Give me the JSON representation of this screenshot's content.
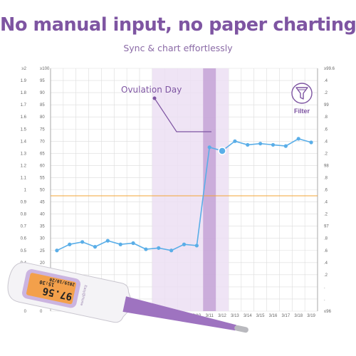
{
  "header": {
    "title": "No manual input, no paper charting",
    "subtitle": "Sync & chart effortlessly"
  },
  "callout": {
    "label": "Ovulation Day"
  },
  "filter": {
    "label": "Filter",
    "icon": "filter-funnel-icon"
  },
  "thermometer": {
    "display_main": "97.56",
    "display_secondary": "15:30",
    "display_date": "2019/10/20",
    "brand_text": "Easy@Home"
  },
  "colors": {
    "accent": "#7e55a2",
    "series": "#5aaee8",
    "threshold": "#f3a435",
    "highlight_band": "#ecdff3",
    "ovulation_column": "#c4a3d6",
    "grid": "#dcdcdc"
  },
  "chart_data": {
    "type": "line",
    "x": [
      "",
      "",
      "",
      "",
      "",
      "",
      "",
      "",
      "",
      "",
      "",
      "3/10",
      "3/11",
      "3/12",
      "3/13",
      "3/14",
      "3/15",
      "3/16",
      "3/17",
      "3/18",
      "3/19"
    ],
    "series": [
      {
        "values": [
          0.5,
          0.55,
          0.57,
          0.53,
          0.58,
          0.55,
          0.56,
          0.51,
          0.52,
          0.5,
          0.55,
          0.54,
          1.35,
          1.32,
          1.4,
          1.37,
          1.38,
          1.37,
          1.36,
          1.42,
          1.39
        ]
      }
    ],
    "y_left_outer": {
      "ticks": [
        "≥2",
        "1.9",
        "1.8",
        "1.7",
        "1.6",
        "1.5",
        "1.4",
        "1.3",
        "1.2",
        "1.1",
        "1",
        "0.9",
        "0.8",
        "0.7",
        "0.6",
        "0.5",
        "0.4",
        "0.3",
        "0.2",
        "0.1",
        "0"
      ],
      "range": [
        0,
        2
      ]
    },
    "y_left_inner": {
      "ticks": [
        "≥100",
        "95",
        "90",
        "85",
        "80",
        "75",
        "70",
        "65",
        "60",
        "55",
        "50",
        "45",
        "40",
        "35",
        "30",
        "25",
        "20",
        "15",
        "10",
        "5",
        "0"
      ]
    },
    "y_right_inner": {
      "ticks": [
        "",
        "",
        "",
        "",
        "",
        "",
        "",
        "",
        "",
        "",
        "",
        "",
        "",
        "",
        "",
        "",
        "",
        "",
        "",
        "",
        ""
      ]
    },
    "y_right_outer": {
      "ticks": [
        "≥99.6",
        ".4",
        ".2",
        "99",
        ".8",
        ".6",
        ".4",
        ".2",
        "98",
        ".8",
        ".6",
        ".4",
        ".2",
        "97",
        ".8",
        ".6",
        ".4",
        ".2",
        ".",
        ".",
        "≤96"
      ]
    },
    "threshold_value": 0.95,
    "highlight_range": [
      8,
      13
    ],
    "ovulation_index": 12,
    "ylim": [
      0,
      2
    ],
    "grid": true
  }
}
